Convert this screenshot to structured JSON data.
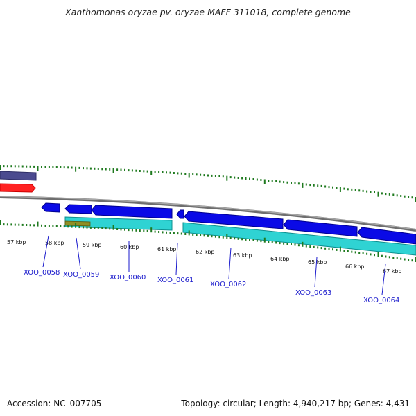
{
  "header": {
    "title": "Xanthomonas oryzae pv. oryzae MAFF 311018, complete genome"
  },
  "footer": {
    "accession": "Accession: NC_007705",
    "summary": "Topology: circular; Length: 4,940,217 bp; Genes: 4,431"
  },
  "colors": {
    "cds": "#0a0ae6",
    "rna": "#2ad0d0",
    "other_feature": "#8a8a20",
    "outer_gene": "#555599",
    "red_feature": "#ff2020",
    "ticks": "#1f7a1f",
    "backbone": "#808080"
  },
  "ruler": {
    "labels": [
      "57 kbp",
      "58 kbp",
      "59 kbp",
      "60 kbp",
      "61 kbp",
      "62 kbp",
      "63 kbp",
      "64 kbp",
      "65 kbp",
      "66 kbp",
      "67 kbp"
    ]
  },
  "genes": [
    {
      "label": "XOO_0058"
    },
    {
      "label": "XOO_0059"
    },
    {
      "label": "XOO_0060"
    },
    {
      "label": "XOO_0061"
    },
    {
      "label": "XOO_0062"
    },
    {
      "label": "XOO_0063"
    },
    {
      "label": "XOO_0064"
    }
  ]
}
